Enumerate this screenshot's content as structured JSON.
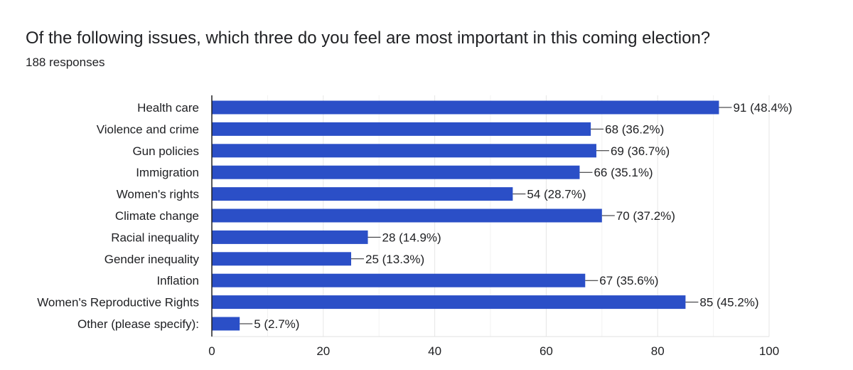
{
  "header": {
    "title": "Of the following issues, which three do you feel are most important in this coming election?",
    "subtitle": "188 responses"
  },
  "chart_data": {
    "type": "bar",
    "orientation": "horizontal",
    "categories": [
      "Health care",
      "Violence and crime",
      "Gun policies",
      "Immigration",
      "Women's rights",
      "Climate change",
      "Racial inequality",
      "Gender inequality",
      "Inflation",
      "Women's Reproductive Rights",
      "Other (please specify):"
    ],
    "values": [
      91,
      68,
      69,
      66,
      54,
      70,
      28,
      25,
      67,
      85,
      5
    ],
    "data_labels": [
      "91 (48.4%)",
      "68 (36.2%)",
      "69 (36.7%)",
      "66 (35.1%)",
      "54 (28.7%)",
      "70 (37.2%)",
      "28 (14.9%)",
      "25 (13.3%)",
      "67 (35.6%)",
      "85 (45.2%)",
      "5 (2.7%)"
    ],
    "xlim": [
      0,
      100
    ],
    "xticks": [
      0,
      20,
      40,
      60,
      80,
      100
    ],
    "grid": true,
    "bar_color": "#2b4fc7"
  }
}
